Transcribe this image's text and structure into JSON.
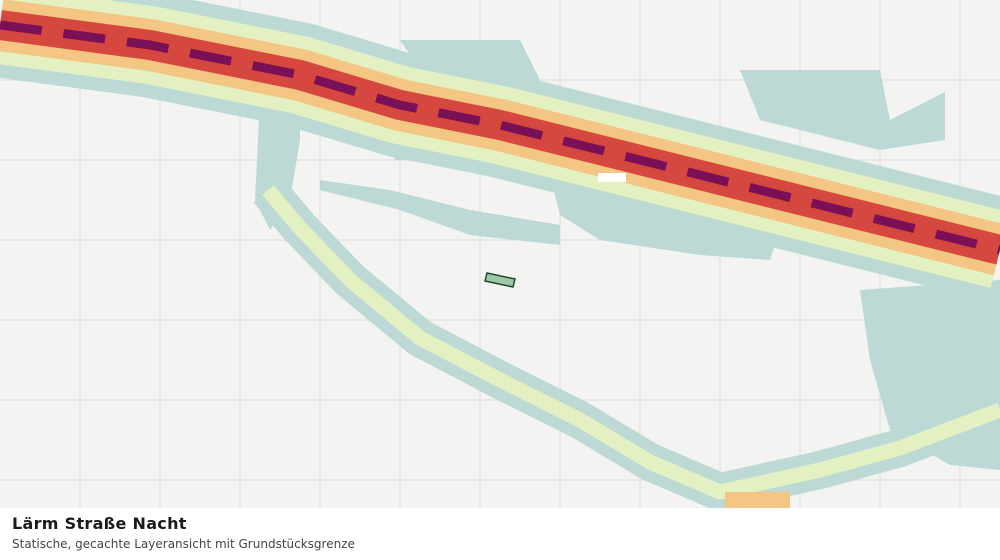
{
  "title": "Lärm Straße Nacht",
  "subtitle": "Statische, gecachte Layeransicht mit Grundstücksgrenze"
}
